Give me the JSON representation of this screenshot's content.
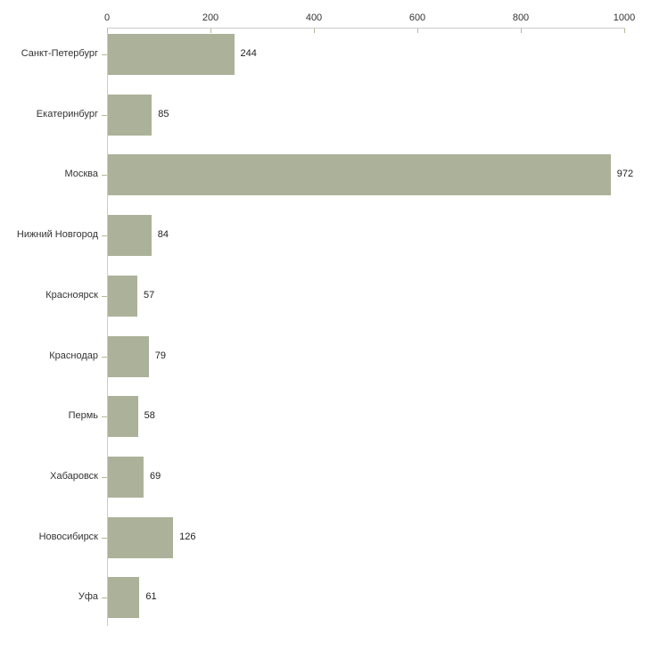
{
  "chart_data": {
    "type": "bar",
    "orientation": "horizontal",
    "title": "",
    "xlabel": "",
    "ylabel": "",
    "axis_position": "top",
    "grid": false,
    "legend": false,
    "categories": [
      "Санкт-Петербург",
      "Екатеринбург",
      "Москва",
      "Нижний Новгород",
      "Красноярск",
      "Краснодар",
      "Пермь",
      "Хабаровск",
      "Новосибирск",
      "Уфа"
    ],
    "values": [
      244,
      85,
      972,
      84,
      57,
      79,
      58,
      69,
      126,
      61
    ],
    "value_labels": [
      "244",
      "85",
      "972",
      "84",
      "57",
      "79",
      "58",
      "69",
      "126",
      "61"
    ],
    "xlim": [
      0,
      1000
    ],
    "x_ticks": [
      "0",
      "200",
      "400",
      "600",
      "800",
      "1000"
    ],
    "x_tick_values": [
      0,
      200,
      400,
      600,
      800,
      1000
    ],
    "colors": {
      "bar": "#abb299",
      "axis_line": "#cccccc",
      "tick_mark": "#b8b892",
      "text": "#333333",
      "background": "#ffffff"
    }
  }
}
